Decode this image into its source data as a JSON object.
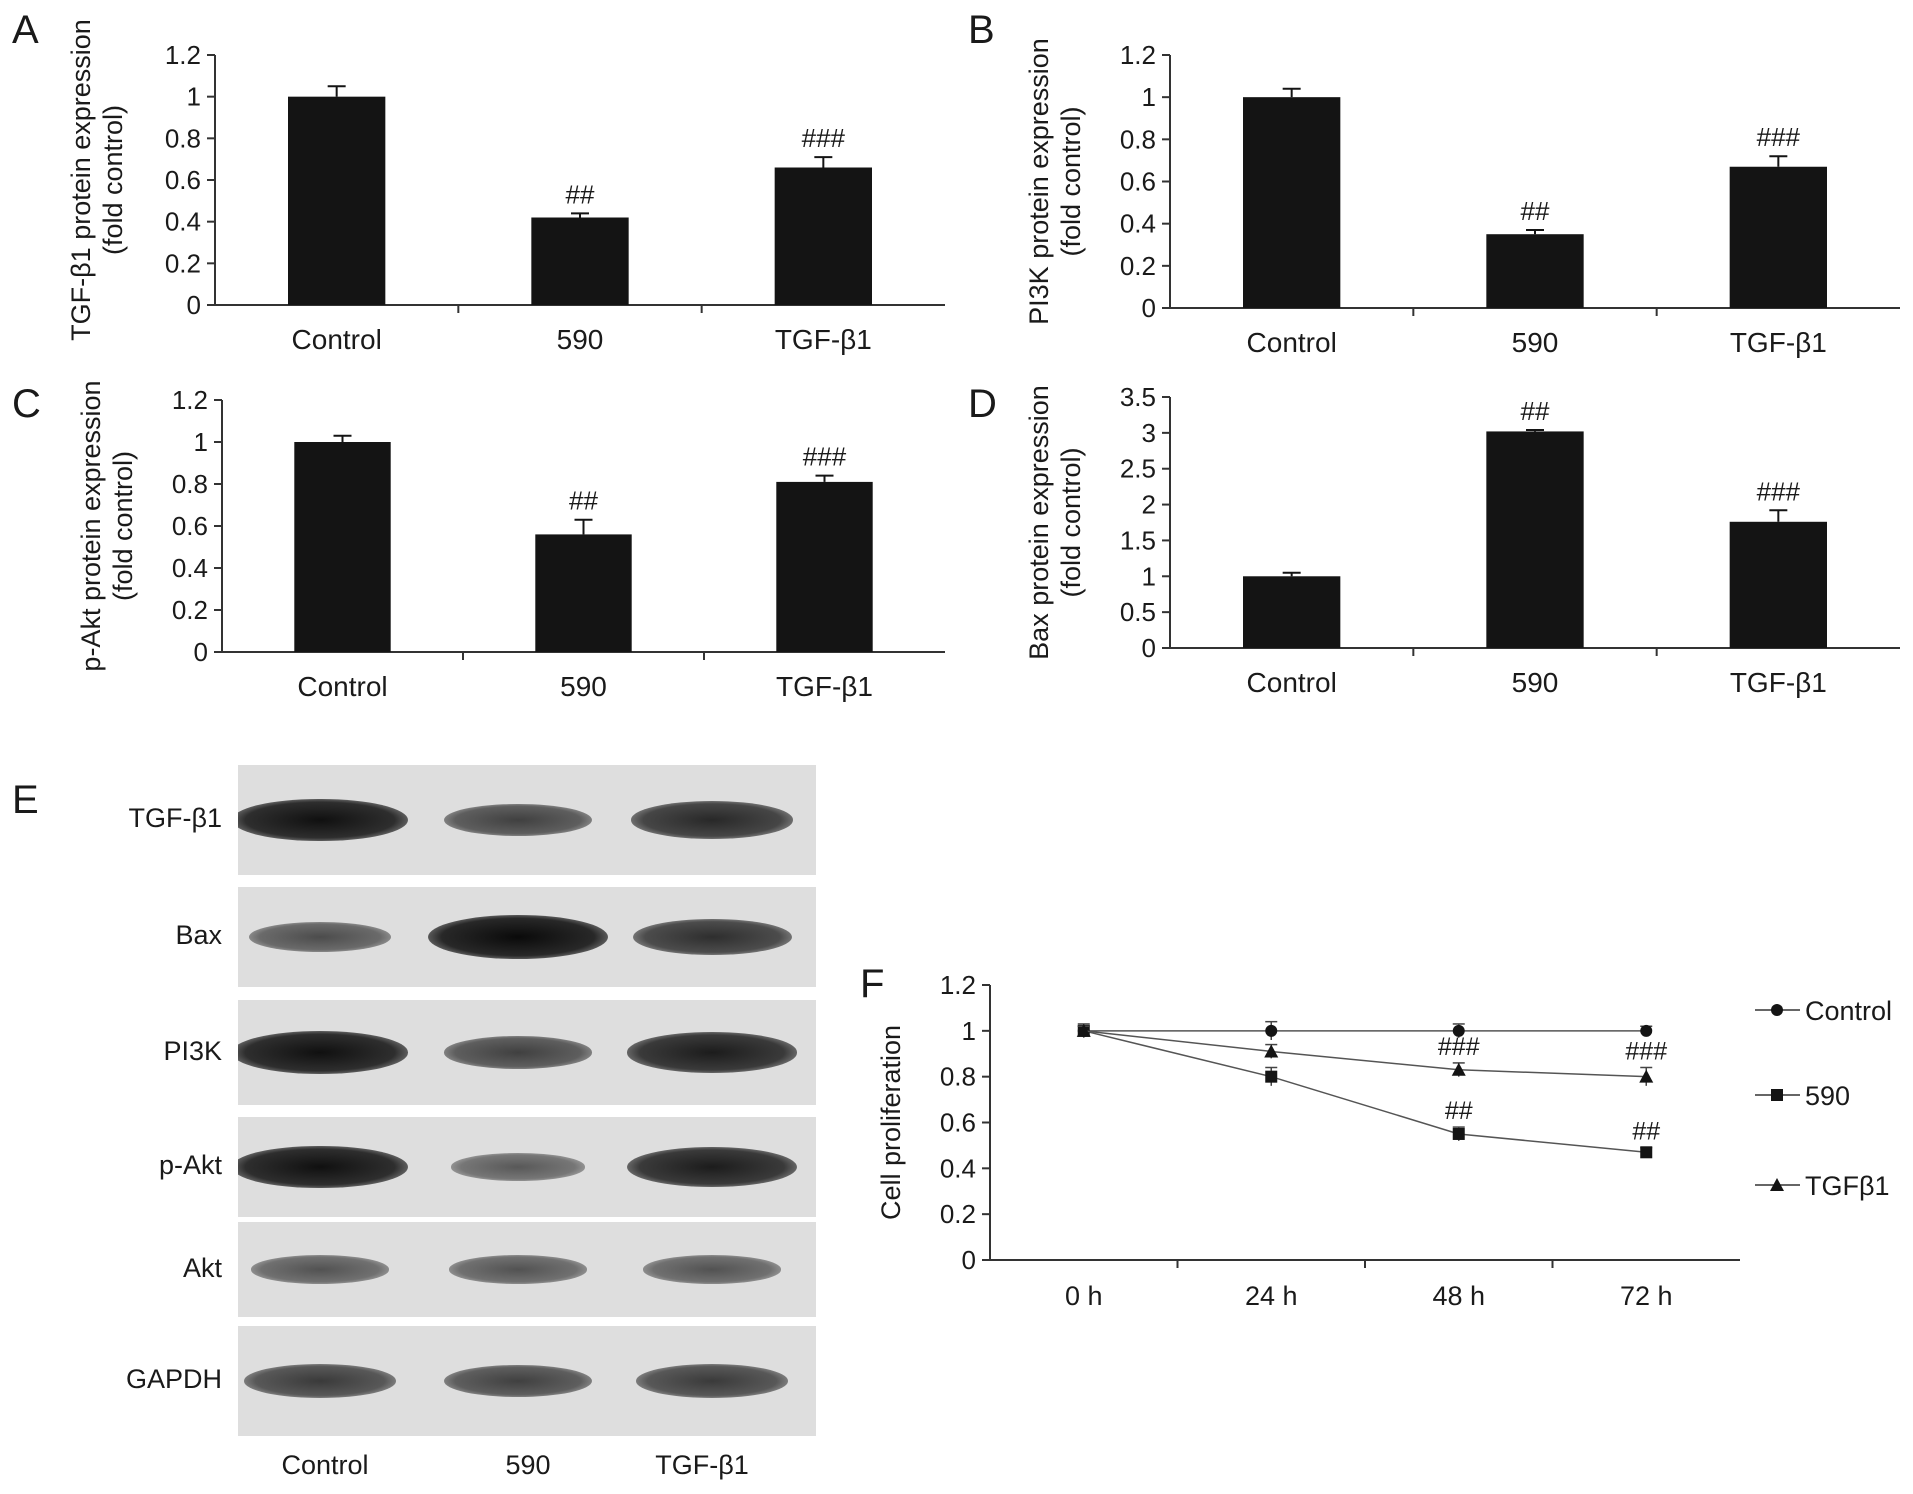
{
  "panels": {
    "A": {
      "letter": "A"
    },
    "B": {
      "letter": "B"
    },
    "C": {
      "letter": "C"
    },
    "D": {
      "letter": "D"
    },
    "E": {
      "letter": "E"
    },
    "F": {
      "letter": "F"
    }
  },
  "chart_data": [
    {
      "id": "A",
      "type": "bar",
      "ylabel": [
        "TGF-β1 protein expression",
        "(fold control)"
      ],
      "categories": [
        "Control",
        "590",
        "TGF-β1"
      ],
      "values": [
        1.0,
        0.42,
        0.66
      ],
      "errors": [
        0.05,
        0.02,
        0.05
      ],
      "annotations": [
        "",
        "##",
        "###"
      ],
      "ylim": [
        0,
        1.2
      ],
      "yticks": [
        "0",
        "0.2",
        "0.4",
        "0.6",
        "0.8",
        "1",
        "1.2"
      ]
    },
    {
      "id": "B",
      "type": "bar",
      "ylabel": [
        "PI3K protein expression",
        "(fold control)"
      ],
      "categories": [
        "Control",
        "590",
        "TGF-β1"
      ],
      "values": [
        1.0,
        0.35,
        0.67
      ],
      "errors": [
        0.04,
        0.02,
        0.05
      ],
      "annotations": [
        "",
        "##",
        "###"
      ],
      "ylim": [
        0,
        1.2
      ],
      "yticks": [
        "0",
        "0.2",
        "0.4",
        "0.6",
        "0.8",
        "1",
        "1.2"
      ]
    },
    {
      "id": "C",
      "type": "bar",
      "ylabel": [
        "p-Akt protein expression",
        "(fold control)"
      ],
      "categories": [
        "Control",
        "590",
        "TGF-β1"
      ],
      "values": [
        1.0,
        0.56,
        0.81
      ],
      "errors": [
        0.03,
        0.07,
        0.03
      ],
      "annotations": [
        "",
        "##",
        "###"
      ],
      "ylim": [
        0,
        1.2
      ],
      "yticks": [
        "0",
        "0.2",
        "0.4",
        "0.6",
        "0.8",
        "1",
        "1.2"
      ]
    },
    {
      "id": "D",
      "type": "bar",
      "ylabel": [
        "Bax protein expression",
        "(fold control)"
      ],
      "categories": [
        "Control",
        "590",
        "TGF-β1"
      ],
      "values": [
        1.0,
        3.02,
        1.76
      ],
      "errors": [
        0.05,
        0.02,
        0.16
      ],
      "annotations": [
        "",
        "##",
        "###"
      ],
      "ylim": [
        0,
        3.5
      ],
      "yticks": [
        "0",
        "0.5",
        "1",
        "1.5",
        "2",
        "2.5",
        "3",
        "3.5"
      ]
    },
    {
      "id": "F",
      "type": "line",
      "ylabel": [
        "Cell proliferation"
      ],
      "x": [
        "0 h",
        "24 h",
        "48 h",
        "72 h"
      ],
      "ylim": [
        0,
        1.2
      ],
      "yticks": [
        "0",
        "0.2",
        "0.4",
        "0.6",
        "0.8",
        "1",
        "1.2"
      ],
      "series": [
        {
          "name": "Control",
          "marker": "circle",
          "values": [
            1.0,
            1.0,
            1.0,
            1.0
          ],
          "errors": [
            0.03,
            0.04,
            0.03,
            0.02
          ],
          "annotations": [
            "",
            "",
            "",
            ""
          ]
        },
        {
          "name": "590",
          "marker": "square",
          "values": [
            1.0,
            0.8,
            0.55,
            0.47
          ],
          "errors": [
            0.02,
            0.04,
            0.03,
            0.02
          ],
          "annotations": [
            "",
            "",
            "##",
            "##"
          ]
        },
        {
          "name": "TGFβ1",
          "marker": "triangle",
          "values": [
            1.0,
            0.91,
            0.83,
            0.8
          ],
          "errors": [
            0.02,
            0.03,
            0.03,
            0.04
          ],
          "annotations": [
            "",
            "",
            "###",
            "###"
          ]
        }
      ]
    }
  ],
  "blot": {
    "rows": [
      {
        "label": "TGF-β1",
        "intensity": [
          0.95,
          0.55,
          0.75
        ]
      },
      {
        "label": "Bax",
        "intensity": [
          0.45,
          1.0,
          0.7
        ]
      },
      {
        "label": "PI3K",
        "intensity": [
          0.95,
          0.55,
          0.85
        ]
      },
      {
        "label": "p-Akt",
        "intensity": [
          0.95,
          0.35,
          0.85
        ]
      },
      {
        "label": "Akt",
        "intensity": [
          0.4,
          0.4,
          0.4
        ]
      },
      {
        "label": "GAPDH",
        "intensity": [
          0.6,
          0.55,
          0.6
        ]
      }
    ],
    "lanes": [
      "Control",
      "590",
      "TGF-β1"
    ]
  },
  "colors": {
    "bar": "#141414",
    "axis": "#333333",
    "text": "#1a1a1a"
  }
}
